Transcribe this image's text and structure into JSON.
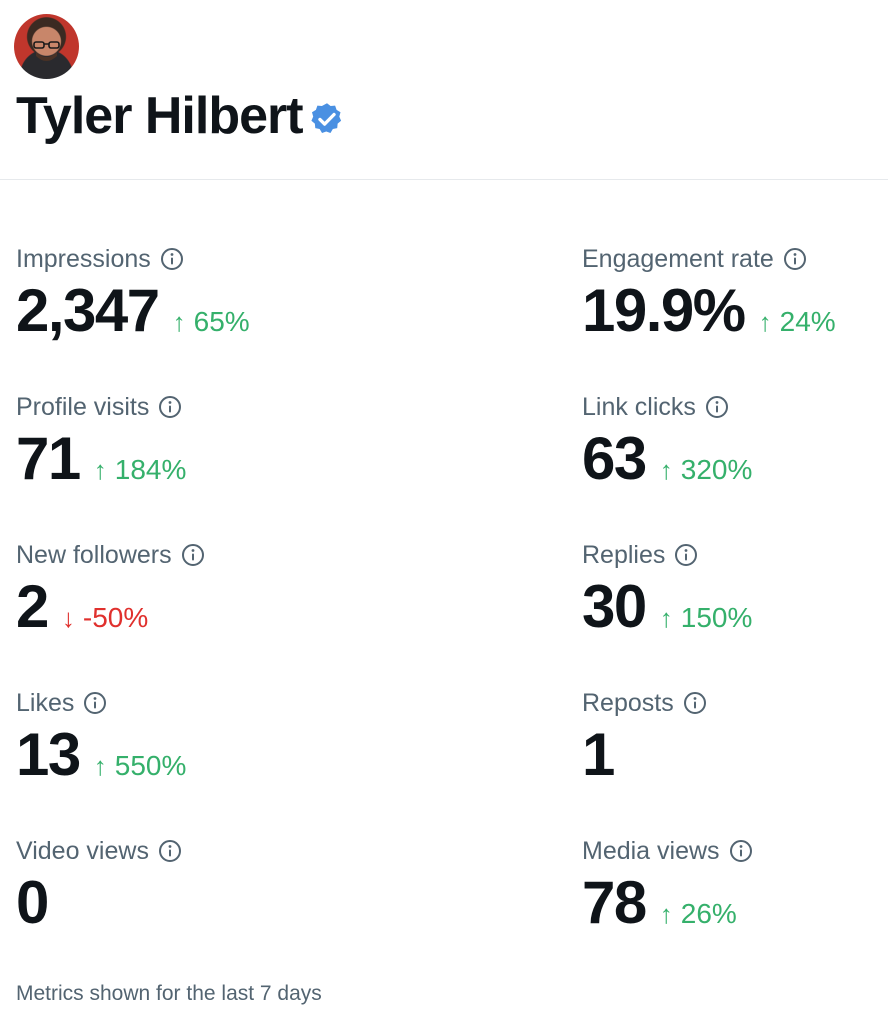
{
  "profile": {
    "name": "Tyler Hilbert",
    "verified_color": "#4a90e2"
  },
  "icons": {
    "info": "info-circle-icon",
    "up": "↑",
    "down": "↓"
  },
  "metrics": [
    {
      "label": "Impressions",
      "value": "2,347",
      "change": "65%",
      "direction": "up"
    },
    {
      "label": "Engagement rate",
      "value": "19.9%",
      "change": "24%",
      "direction": "up"
    },
    {
      "label": "Profile visits",
      "value": "71",
      "change": "184%",
      "direction": "up"
    },
    {
      "label": "Link clicks",
      "value": "63",
      "change": "320%",
      "direction": "up"
    },
    {
      "label": "New followers",
      "value": "2",
      "change": "-50%",
      "direction": "down"
    },
    {
      "label": "Replies",
      "value": "30",
      "change": "150%",
      "direction": "up"
    },
    {
      "label": "Likes",
      "value": "13",
      "change": "550%",
      "direction": "up"
    },
    {
      "label": "Reposts",
      "value": "1",
      "change": "",
      "direction": ""
    },
    {
      "label": "Video views",
      "value": "0",
      "change": "",
      "direction": ""
    },
    {
      "label": "Media views",
      "value": "78",
      "change": "26%",
      "direction": "up"
    }
  ],
  "footer": {
    "text": "Metrics shown for the last 7 days"
  },
  "colors": {
    "up": "#35b06b",
    "down": "#e0302d",
    "label": "#536471"
  }
}
